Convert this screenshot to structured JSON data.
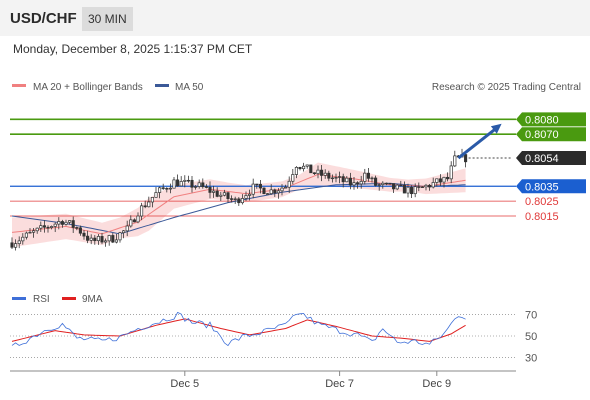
{
  "header": {
    "symbol": "USD/CHF",
    "timeframe": "30 MIN"
  },
  "timestamp": "Monday, December 8, 2025 1:15:37 PM CET",
  "legend": {
    "ma20_label": "MA 20 + Bollinger Bands",
    "ma50_label": "MA 50",
    "copyright": "Research © 2025 Trading Central",
    "rsi_label": "RSI",
    "rsi_ma_label": "9MA"
  },
  "colors": {
    "candle": "#333333",
    "ma20": "#e84a4a",
    "bollinger_fill": "#fbd9d9",
    "ma50": "#3b5998",
    "target_green": "#4a9a10",
    "pivot_blue": "#1b5fd0",
    "support_red": "#e03a3a",
    "price_dark": "#2b2b2b",
    "rsi": "#3e6fd8",
    "rsi_ma": "#e02020"
  },
  "chart_data": [
    {
      "type": "candlestick",
      "title": "",
      "x_tick_labels": [
        "Dec 5",
        "Dec 7",
        "Dec 9"
      ],
      "x_tick_index": [
        48,
        91,
        118
      ],
      "bar_count": 127,
      "ylim": [
        0.7972,
        0.8093
      ],
      "y_unit": "price",
      "key_levels": [
        {
          "name": "resistance-2",
          "value": 0.808,
          "label": "0.8080",
          "role": "target"
        },
        {
          "name": "resistance-1",
          "value": 0.807,
          "label": "0.8070",
          "role": "target"
        },
        {
          "name": "pivot",
          "value": 0.8035,
          "label": "0.8035",
          "role": "pivot"
        },
        {
          "name": "support-1",
          "value": 0.8025,
          "label": "0.8025",
          "role": "support"
        },
        {
          "name": "support-2",
          "value": 0.8015,
          "label": "0.8015",
          "role": "support"
        }
      ],
      "last_price": {
        "value": 0.8054,
        "label": "0.8054"
      },
      "close_anchors": [
        [
          0,
          0.7997
        ],
        [
          6,
          0.8004
        ],
        [
          14,
          0.8012
        ],
        [
          18,
          0.8007
        ],
        [
          22,
          0.7998
        ],
        [
          28,
          0.8
        ],
        [
          32,
          0.8006
        ],
        [
          35,
          0.8018
        ],
        [
          40,
          0.803
        ],
        [
          45,
          0.8038
        ],
        [
          52,
          0.8035
        ],
        [
          57,
          0.803
        ],
        [
          62,
          0.8025
        ],
        [
          67,
          0.8034
        ],
        [
          72,
          0.8032
        ],
        [
          76,
          0.8035
        ],
        [
          79,
          0.805
        ],
        [
          84,
          0.8044
        ],
        [
          90,
          0.804
        ],
        [
          95,
          0.8036
        ],
        [
          98,
          0.8043
        ],
        [
          101,
          0.8036
        ],
        [
          108,
          0.8033
        ],
        [
          112,
          0.8032
        ],
        [
          116,
          0.8036
        ],
        [
          121,
          0.804
        ],
        [
          123,
          0.8053
        ],
        [
          126,
          0.8054
        ]
      ],
      "ma20_anchors": [
        [
          0,
          0.8004
        ],
        [
          15,
          0.8008
        ],
        [
          25,
          0.8003
        ],
        [
          35,
          0.8011
        ],
        [
          45,
          0.8028
        ],
        [
          55,
          0.8033
        ],
        [
          65,
          0.803
        ],
        [
          75,
          0.8033
        ],
        [
          85,
          0.8043
        ],
        [
          95,
          0.804
        ],
        [
          105,
          0.8036
        ],
        [
          115,
          0.8035
        ],
        [
          126,
          0.8039
        ]
      ],
      "bollinger_halfwidth_anchors": [
        [
          0,
          0.001
        ],
        [
          30,
          0.0007
        ],
        [
          38,
          0.0011
        ],
        [
          45,
          0.0008
        ],
        [
          60,
          0.0006
        ],
        [
          80,
          0.0005
        ],
        [
          85,
          0.0008
        ],
        [
          95,
          0.0006
        ],
        [
          110,
          0.0004
        ],
        [
          126,
          0.0008
        ]
      ],
      "ma50_anchors": [
        [
          0,
          0.8015
        ],
        [
          15,
          0.801
        ],
        [
          30,
          0.8003
        ],
        [
          45,
          0.8014
        ],
        [
          60,
          0.8024
        ],
        [
          75,
          0.8031
        ],
        [
          90,
          0.8036
        ],
        [
          105,
          0.8037
        ],
        [
          115,
          0.8035
        ],
        [
          126,
          0.8036
        ]
      ],
      "forecast_arrow": {
        "from": [
          124,
          0.8054
        ],
        "to": [
          136,
          0.8077
        ]
      }
    },
    {
      "type": "line",
      "title": "",
      "series": [
        {
          "name": "RSI",
          "anchors": [
            [
              0,
              39
            ],
            [
              10,
              57
            ],
            [
              14,
              61
            ],
            [
              18,
              48
            ],
            [
              25,
              45
            ],
            [
              30,
              49
            ],
            [
              35,
              57
            ],
            [
              42,
              65
            ],
            [
              46,
              70
            ],
            [
              50,
              63
            ],
            [
              55,
              60
            ],
            [
              60,
              43
            ],
            [
              64,
              49
            ],
            [
              70,
              54
            ],
            [
              76,
              60
            ],
            [
              80,
              72
            ],
            [
              85,
              61
            ],
            [
              90,
              56
            ],
            [
              96,
              51
            ],
            [
              100,
              44
            ],
            [
              103,
              57
            ],
            [
              107,
              44
            ],
            [
              112,
              45
            ],
            [
              116,
              42
            ],
            [
              120,
              52
            ],
            [
              124,
              70
            ],
            [
              126,
              68
            ]
          ]
        },
        {
          "name": "9MA",
          "anchors": [
            [
              0,
              45
            ],
            [
              12,
              55
            ],
            [
              20,
              51
            ],
            [
              30,
              50
            ],
            [
              40,
              60
            ],
            [
              48,
              66
            ],
            [
              58,
              57
            ],
            [
              66,
              51
            ],
            [
              76,
              57
            ],
            [
              82,
              65
            ],
            [
              90,
              59
            ],
            [
              100,
              50
            ],
            [
              108,
              48
            ],
            [
              116,
              45
            ],
            [
              122,
              52
            ],
            [
              126,
              60
            ]
          ]
        }
      ],
      "y_ticks": [
        30,
        50,
        70
      ],
      "ylim": [
        22,
        78
      ]
    }
  ]
}
